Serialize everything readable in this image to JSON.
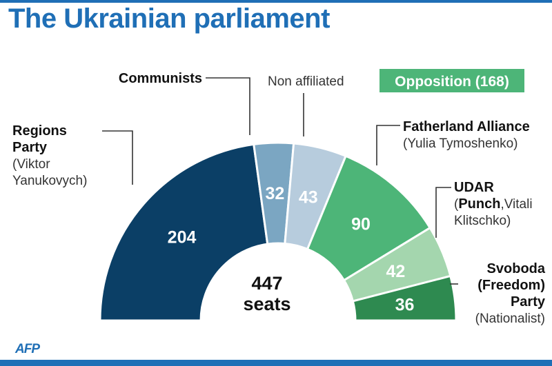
{
  "title": "The Ukrainian parliament",
  "logo": "AFP",
  "chart_data": {
    "type": "pie",
    "variant": "semicircle-donut",
    "total_label_value": "447",
    "total_label_unit": "seats",
    "opposition_badge": "Opposition (168)",
    "segments": [
      {
        "key": "regions",
        "value": 204,
        "color": "#0b3f66",
        "text_color": "#ffffff",
        "label": [
          [
            "Regions",
            "b"
          ],
          [
            "Party",
            "b"
          ],
          [
            "(Viktor",
            "n"
          ],
          [
            "Yanukovych)",
            "n"
          ]
        ]
      },
      {
        "key": "communists",
        "value": 32,
        "color": "#7ba6c2",
        "text_color": "#ffffff",
        "label": [
          [
            "Communists",
            "b"
          ]
        ]
      },
      {
        "key": "non-affiliated",
        "value": 43,
        "color": "#b7ccdd",
        "text_color": "#ffffff",
        "label": [
          [
            "Non affiliated",
            "n"
          ]
        ]
      },
      {
        "key": "fatherland",
        "value": 90,
        "color": "#4db578",
        "text_color": "#ffffff",
        "label": [
          [
            "Fatherland Alliance",
            "b"
          ],
          [
            "(Yulia Tymoshenko)",
            "n"
          ]
        ]
      },
      {
        "key": "udar",
        "value": 42,
        "color": "#a4d6ae",
        "text_color": "#ffffff",
        "label": [
          [
            "UDAR",
            "b"
          ],
          [
            [
              "(",
              "n"
            ],
            [
              "Punch",
              "b"
            ],
            [
              ",Vitali",
              "n"
            ]
          ],
          [
            "Klitschko)",
            "n"
          ]
        ]
      },
      {
        "key": "svoboda",
        "value": 36,
        "color": "#2e8a50",
        "text_color": "#ffffff",
        "label": [
          [
            "Svoboda",
            "b"
          ],
          [
            "(Freedom)",
            "b"
          ],
          [
            "Party",
            "b"
          ],
          [
            "(Nationalist)",
            "n"
          ]
        ]
      }
    ]
  }
}
